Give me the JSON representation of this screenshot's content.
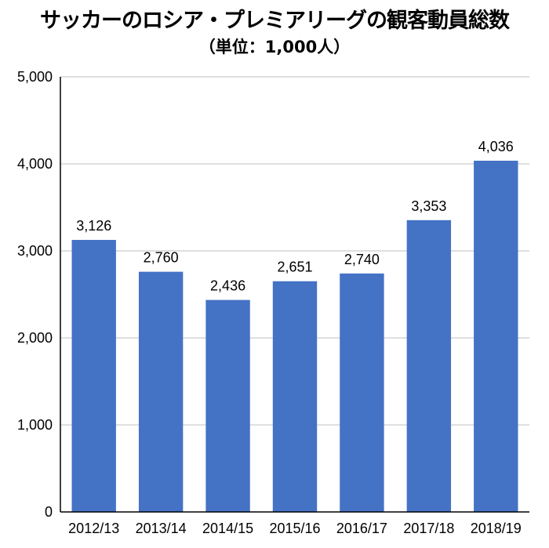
{
  "chart_data": {
    "type": "bar",
    "title": "サッカーのロシア・プレミアリーグの観客動員総数",
    "subtitle": "（単位：1,000人）",
    "categories": [
      "2012/13",
      "2013/14",
      "2014/15",
      "2015/16",
      "2016/17",
      "2017/18",
      "2018/19"
    ],
    "values": [
      3126,
      2760,
      2436,
      2651,
      2740,
      3353,
      4036
    ],
    "data_labels": [
      "3,126",
      "2,760",
      "2,436",
      "2,651",
      "2,740",
      "3,353",
      "4,036"
    ],
    "ylim": [
      0,
      5000
    ],
    "yticks": [
      0,
      1000,
      2000,
      3000,
      4000,
      5000
    ],
    "ytick_labels": [
      "0",
      "1,000",
      "2,000",
      "3,000",
      "4,000",
      "5,000"
    ],
    "grid": true,
    "legend": "none",
    "bar_color": "#4472C4",
    "grid_color": "#BFBFBF"
  }
}
